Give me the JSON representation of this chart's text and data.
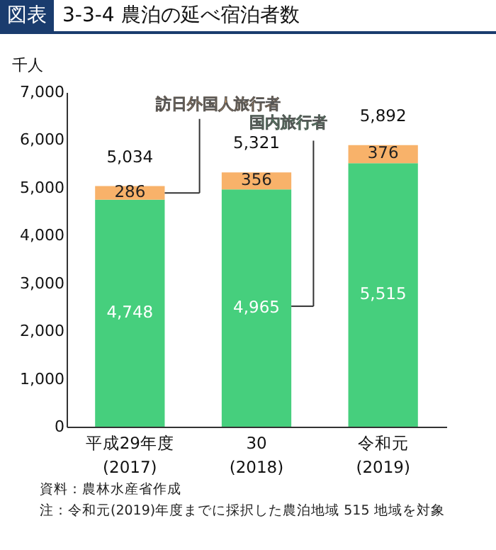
{
  "chart_data": {
    "type": "bar",
    "title": "図表 3-3-4 農泊の延べ宿泊者数",
    "ylabel": "千人",
    "categories": [
      "平成29年度\n(2017)",
      "30\n(2018)",
      "令和元\n(2019)"
    ],
    "series": [
      {
        "name": "国内旅行者",
        "color": "#46cf7d",
        "values": [
          4748,
          4965,
          5515
        ],
        "value_labels": [
          "4,748",
          "4,965",
          "5,515"
        ]
      },
      {
        "name": "訪日外国人旅行者",
        "color": "#f8b26a",
        "values": [
          286,
          356,
          376
        ],
        "value_labels": [
          "286",
          "356",
          "376"
        ]
      }
    ],
    "stacked": true,
    "totals": [
      "5,034",
      "5,321",
      "5,892"
    ],
    "ylim": [
      0,
      7000
    ],
    "yticks": [
      0,
      {
        "value": 1000,
        "label": "1,000"
      },
      {
        "value": 2000,
        "label": "2,000"
      },
      {
        "value": 3000,
        "label": "3,000"
      },
      {
        "value": 4000,
        "label": "4,000"
      },
      {
        "value": 5000,
        "label": "5,000"
      },
      {
        "value": 6000,
        "label": "6,000"
      },
      {
        "value": 7000,
        "label": "7,000"
      }
    ],
    "legend": false,
    "annotations": [
      "資料：農林水産省作成",
      "注：令和元(2019)年度までに採択した農泊地域 515 地域を対象"
    ]
  }
}
